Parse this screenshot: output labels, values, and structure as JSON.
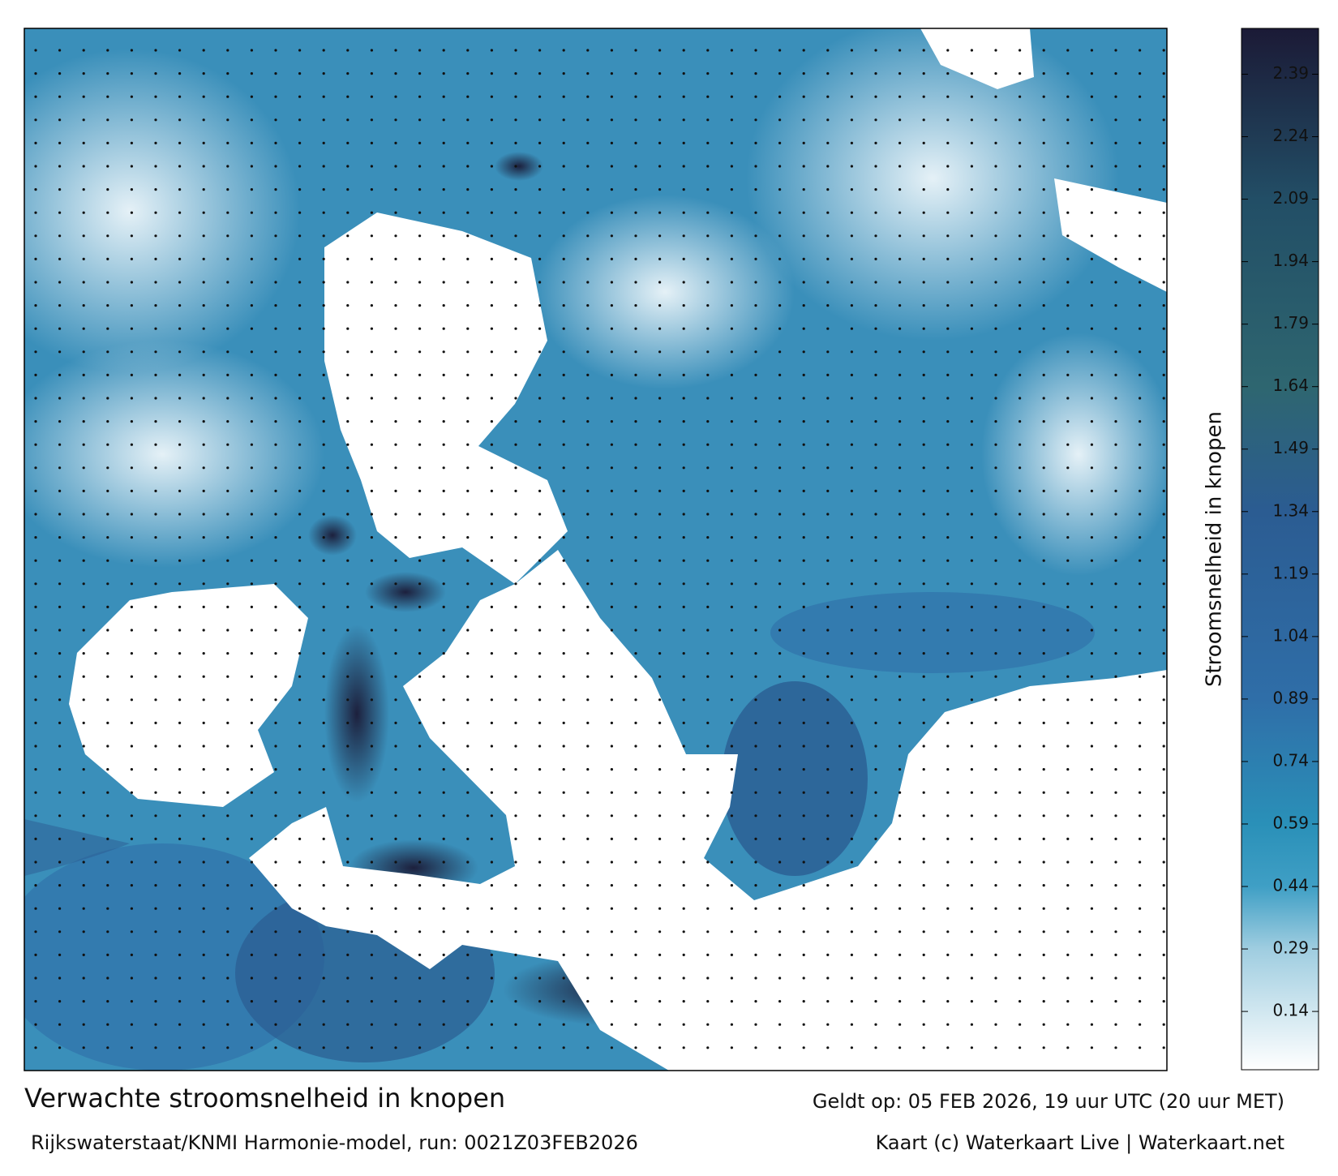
{
  "map": {
    "title": "Verwachte stroomsnelheid in knopen",
    "source": "Rijkswaterstaat/KNMI Harmonie-model, run: 0021Z03FEB2026",
    "valid_time": "Geldt op: 05 FEB 2026, 19 uur UTC (20 uur MET)",
    "credit": "Kaart (c) Waterkaart Live | Waterkaart.net"
  },
  "colorbar": {
    "label": "Stroomsnelheid in knopen",
    "range": [
      0,
      2.5
    ],
    "ticks": [
      0.14,
      0.29,
      0.44,
      0.59,
      0.74,
      0.89,
      1.04,
      1.19,
      1.34,
      1.49,
      1.64,
      1.79,
      1.94,
      2.09,
      2.24,
      2.39
    ],
    "color_stops": [
      {
        "value": 0,
        "color": "#ffffff"
      },
      {
        "value": 0.29,
        "color": "#9fcde0"
      },
      {
        "value": 0.44,
        "color": "#3f9fc5"
      },
      {
        "value": 0.59,
        "color": "#2a90b8"
      },
      {
        "value": 0.89,
        "color": "#2f6ea8"
      },
      {
        "value": 1.34,
        "color": "#2b5c92"
      },
      {
        "value": 1.64,
        "color": "#2e6670"
      },
      {
        "value": 2.09,
        "color": "#224e66"
      },
      {
        "value": 2.5,
        "color": "#1b1a36"
      }
    ]
  }
}
